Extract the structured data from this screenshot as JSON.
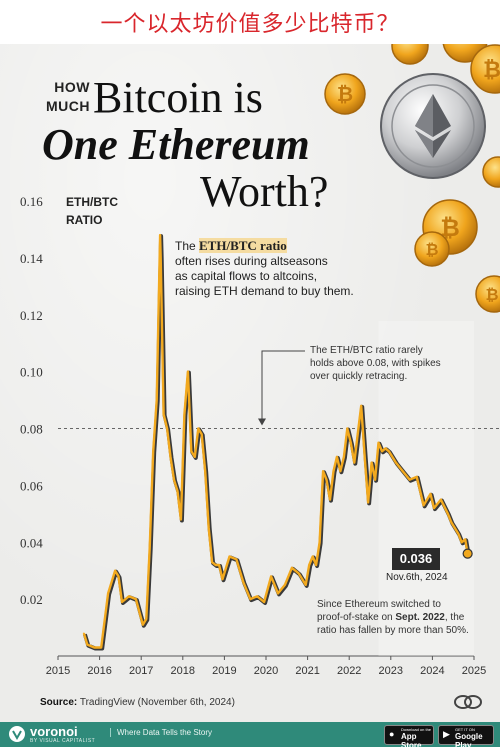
{
  "banner": {
    "text": "一个以太坊价值多少比特币？"
  },
  "title": {
    "how": "HOW",
    "much": "MUCH",
    "line1": "Bitcoin is",
    "line2": "One Ethereum",
    "line3": "Worth?"
  },
  "annotations": {
    "intro_pre": "The ",
    "intro_highlight": "ETH/BTC ratio",
    "intro_line2": "often rises during altseasons",
    "intro_line3": "as capital flows to altcoins,",
    "intro_line4": "raising ETH demand to buy them.",
    "ceiling_line1": "The ETH/BTC ratio rarely",
    "ceiling_line2": "holds above 0.08, with spikes",
    "ceiling_line3": "over quickly retracing.",
    "pos_line1": "Since Ethereum switched to",
    "pos_line2_pre": "proof-of-stake on ",
    "pos_line2_bold": "Sept. 2022",
    "pos_line2_post": ", the",
    "pos_line3": "ratio has fallen by more than 50%.",
    "callout_value": "0.036",
    "callout_date": "Nov.6th, 2024"
  },
  "source": {
    "label": "Source:",
    "text": "TradingView (November 6th, 2024)"
  },
  "footer": {
    "brand": "voronoi",
    "brand_sub": "BY VISUAL CAPITALIST",
    "tagline": "Where Data Tells the Story",
    "appstore_small": "Download on the",
    "appstore": "App Store",
    "googleplay_small": "GET IT ON",
    "googleplay": "Google Play"
  },
  "colors": {
    "line": "#f2a91e",
    "line_shadow": "#3a3a3a",
    "reference": "#666666",
    "callout_bg": "#2b2b2b",
    "footer": "#2f8a7a",
    "banner_text": "#d9262c"
  },
  "icons": [
    "bitcoin-coin-icon",
    "ethereum-coin-icon",
    "voronoi-logo-icon",
    "apple-icon",
    "google-play-icon"
  ],
  "chart_data": {
    "type": "line",
    "ylabel": "ETH/BTC RATIO",
    "ylim": [
      0,
      0.16
    ],
    "yticks": [
      "0.02",
      "0.04",
      "0.06",
      "0.08",
      "0.10",
      "0.12",
      "0.14",
      "0.16"
    ],
    "xticks": [
      "2015",
      "2016",
      "2017",
      "2018",
      "2019",
      "2020",
      "2021",
      "2022",
      "2023",
      "2024",
      "2025"
    ],
    "reference_line": 0.08,
    "grid": false,
    "series": [
      {
        "x": [
          "2015-08",
          "2015-09",
          "2015-11",
          "2016-01",
          "2016-03",
          "2016-05",
          "2016-06",
          "2016-07",
          "2016-09",
          "2016-11",
          "2017-01",
          "2017-02",
          "2017-03",
          "2017-04",
          "2017-05",
          "2017-06",
          "2017-06-20",
          "2017-07",
          "2017-08",
          "2017-09",
          "2017-10",
          "2017-11",
          "2017-12",
          "2018-01",
          "2018-02",
          "2018-03",
          "2018-04",
          "2018-05",
          "2018-06",
          "2018-07",
          "2018-08",
          "2018-09",
          "2018-10",
          "2018-11",
          "2018-12",
          "2019-02",
          "2019-04",
          "2019-06",
          "2019-08",
          "2019-10",
          "2019-12",
          "2020-02",
          "2020-04",
          "2020-06",
          "2020-08",
          "2020-10",
          "2020-12",
          "2021-01",
          "2021-02",
          "2021-03",
          "2021-04",
          "2021-05",
          "2021-06",
          "2021-07",
          "2021-08",
          "2021-09",
          "2021-10",
          "2021-11",
          "2021-12",
          "2022-01",
          "2022-02",
          "2022-03",
          "2022-04",
          "2022-05",
          "2022-06",
          "2022-07",
          "2022-08",
          "2022-09",
          "2022-10",
          "2022-11",
          "2022-12",
          "2023-02",
          "2023-04",
          "2023-06",
          "2023-08",
          "2023-10",
          "2023-12",
          "2024-01",
          "2024-03",
          "2024-05",
          "2024-06",
          "2024-08",
          "2024-09",
          "2024-10",
          "2024-11-06"
        ],
        "values": [
          0.008,
          0.004,
          0.003,
          0.003,
          0.022,
          0.03,
          0.028,
          0.019,
          0.021,
          0.02,
          0.011,
          0.013,
          0.038,
          0.072,
          0.09,
          0.148,
          0.14,
          0.085,
          0.08,
          0.07,
          0.062,
          0.058,
          0.048,
          0.085,
          0.1,
          0.072,
          0.07,
          0.08,
          0.078,
          0.065,
          0.045,
          0.033,
          0.032,
          0.032,
          0.027,
          0.035,
          0.034,
          0.026,
          0.02,
          0.021,
          0.019,
          0.028,
          0.022,
          0.025,
          0.031,
          0.029,
          0.025,
          0.032,
          0.035,
          0.032,
          0.04,
          0.065,
          0.062,
          0.055,
          0.065,
          0.07,
          0.065,
          0.07,
          0.08,
          0.075,
          0.068,
          0.078,
          0.088,
          0.07,
          0.054,
          0.068,
          0.062,
          0.075,
          0.072,
          0.073,
          0.072,
          0.068,
          0.065,
          0.062,
          0.063,
          0.053,
          0.057,
          0.052,
          0.055,
          0.05,
          0.047,
          0.043,
          0.04,
          0.041,
          0.036
        ]
      }
    ]
  }
}
